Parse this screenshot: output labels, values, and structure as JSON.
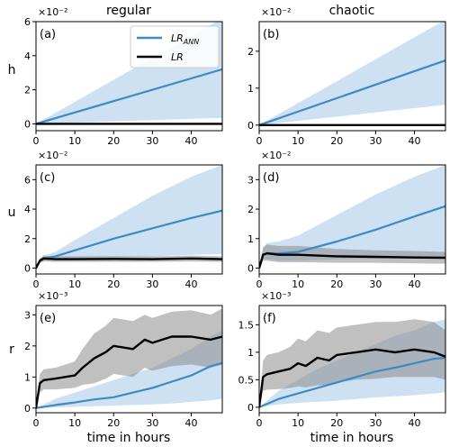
{
  "figure": {
    "column_titles": [
      "regular",
      "chaotic"
    ],
    "row_labels": [
      "h",
      "u",
      "r"
    ],
    "xlabel": "time in hours",
    "legend": [
      {
        "label": "LR",
        "subscript": "ANN",
        "color": "#3d8ac4"
      },
      {
        "label": "LR",
        "subscript": "",
        "color": "#000000"
      }
    ],
    "colors": {
      "ann": "#3d8ac4",
      "ann_band": "#bcd7ee",
      "lr": "#000000",
      "lr_band": "#8c8c8c"
    }
  },
  "chart_data": [
    {
      "type": "line",
      "panel": "(a)",
      "multiplier": "×10⁻²",
      "xlim": [
        0,
        48
      ],
      "ylim": [
        -0.4,
        6
      ],
      "xticks": [
        0,
        10,
        20,
        30,
        40
      ],
      "yticks": [
        0,
        2,
        4,
        6
      ],
      "series": [
        {
          "name": "LR_ANN",
          "x": [
            0,
            48
          ],
          "y": [
            0,
            3.2
          ],
          "lower": [
            0,
            0.35
          ],
          "upper": [
            0,
            6.2
          ]
        },
        {
          "name": "LR",
          "x": [
            0,
            48
          ],
          "y": [
            0,
            0
          ],
          "lower": [
            0,
            0
          ],
          "upper": [
            0,
            0
          ]
        }
      ]
    },
    {
      "type": "line",
      "panel": "(b)",
      "multiplier": "×10⁻²",
      "xlim": [
        0,
        48
      ],
      "ylim": [
        -0.15,
        2.8
      ],
      "xticks": [
        0,
        10,
        20,
        30,
        40
      ],
      "yticks": [
        0,
        1,
        2
      ],
      "series": [
        {
          "name": "LR_ANN",
          "x": [
            0,
            48
          ],
          "y": [
            0,
            1.75
          ],
          "lower": [
            0,
            0.55
          ],
          "upper": [
            0,
            2.85
          ]
        },
        {
          "name": "LR",
          "x": [
            0,
            48
          ],
          "y": [
            0,
            0
          ],
          "lower": [
            0,
            0
          ],
          "upper": [
            0,
            0
          ]
        }
      ]
    },
    {
      "type": "line",
      "panel": "(c)",
      "multiplier": "×10⁻²",
      "xlim": [
        0,
        48
      ],
      "ylim": [
        -0.4,
        7
      ],
      "xticks": [
        0,
        10,
        20,
        30,
        40
      ],
      "yticks": [
        0,
        2,
        4,
        6
      ],
      "series": [
        {
          "name": "LR_ANN",
          "x": [
            0,
            1,
            2,
            5,
            10,
            20,
            30,
            40,
            48
          ],
          "y": [
            0,
            0.5,
            0.65,
            0.8,
            1.2,
            2.0,
            2.7,
            3.4,
            3.9
          ],
          "lower": [
            0,
            0.4,
            0.5,
            0.55,
            0.6,
            0.7,
            0.8,
            0.9,
            0.95
          ],
          "upper": [
            0,
            0.7,
            0.85,
            1.1,
            1.9,
            3.4,
            4.9,
            6.2,
            7.0
          ]
        },
        {
          "name": "LR",
          "x": [
            0,
            1,
            2,
            5,
            10,
            20,
            30,
            40,
            48
          ],
          "y": [
            0,
            0.5,
            0.65,
            0.6,
            0.6,
            0.62,
            0.6,
            0.65,
            0.6
          ],
          "lower": [
            0,
            0.35,
            0.45,
            0.42,
            0.42,
            0.42,
            0.42,
            0.45,
            0.42
          ],
          "upper": [
            0,
            0.65,
            0.85,
            0.8,
            0.8,
            0.82,
            0.8,
            0.85,
            0.8
          ]
        }
      ]
    },
    {
      "type": "line",
      "panel": "(d)",
      "multiplier": "×10⁻²",
      "xlim": [
        0,
        48
      ],
      "ylim": [
        -0.2,
        3.5
      ],
      "xticks": [
        0,
        10,
        20,
        30,
        40
      ],
      "yticks": [
        0,
        1,
        2,
        3
      ],
      "series": [
        {
          "name": "LR_ANN",
          "x": [
            0,
            1,
            2,
            5,
            10,
            20,
            30,
            40,
            48
          ],
          "y": [
            0,
            0.45,
            0.5,
            0.5,
            0.55,
            0.9,
            1.3,
            1.75,
            2.1
          ],
          "lower": [
            0,
            0.3,
            0.3,
            0.25,
            0.25,
            0.3,
            0.32,
            0.33,
            0.35
          ],
          "upper": [
            0,
            0.7,
            0.85,
            0.9,
            1.1,
            1.8,
            2.5,
            3.1,
            3.5
          ]
        },
        {
          "name": "LR",
          "x": [
            0,
            1,
            2,
            5,
            10,
            20,
            30,
            40,
            48
          ],
          "y": [
            0,
            0.45,
            0.5,
            0.45,
            0.45,
            0.4,
            0.38,
            0.36,
            0.35
          ],
          "lower": [
            0,
            0.25,
            0.25,
            0.2,
            0.2,
            0.18,
            0.18,
            0.16,
            0.15
          ],
          "upper": [
            0,
            0.7,
            0.8,
            0.75,
            0.75,
            0.65,
            0.6,
            0.58,
            0.55
          ]
        }
      ]
    },
    {
      "type": "line",
      "panel": "(e)",
      "multiplier": "×10⁻³",
      "xlim": [
        0,
        48
      ],
      "ylim": [
        -0.15,
        3.3
      ],
      "xticks": [
        0,
        10,
        20,
        30,
        40
      ],
      "yticks": [
        0,
        1,
        2,
        3
      ],
      "series": [
        {
          "name": "LR_ANN",
          "x": [
            0,
            5,
            10,
            15,
            20,
            25,
            30,
            35,
            40,
            45,
            48
          ],
          "y": [
            0,
            0.1,
            0.18,
            0.28,
            0.35,
            0.5,
            0.65,
            0.85,
            1.05,
            1.35,
            1.45
          ],
          "lower": [
            0,
            0.02,
            0.04,
            0.06,
            0.08,
            0.1,
            0.12,
            0.15,
            0.2,
            0.25,
            0.3
          ],
          "upper": [
            0,
            0.3,
            0.5,
            0.7,
            0.9,
            1.1,
            1.3,
            1.6,
            1.9,
            2.3,
            2.5
          ]
        },
        {
          "name": "LR",
          "x": [
            0,
            1,
            2,
            5,
            10,
            12,
            15,
            18,
            20,
            25,
            28,
            30,
            35,
            40,
            45,
            48
          ],
          "y": [
            0,
            0.8,
            0.9,
            0.95,
            1.05,
            1.3,
            1.6,
            1.8,
            2.0,
            1.9,
            2.2,
            2.1,
            2.3,
            2.3,
            2.2,
            2.3
          ],
          "lower": [
            0,
            0.5,
            0.6,
            0.6,
            0.65,
            0.75,
            0.8,
            0.95,
            1.1,
            1.0,
            1.3,
            1.2,
            1.35,
            1.4,
            1.3,
            1.4
          ],
          "upper": [
            0,
            1.1,
            1.25,
            1.3,
            1.5,
            1.9,
            2.4,
            2.65,
            2.9,
            2.8,
            3.0,
            2.9,
            3.1,
            3.15,
            3.0,
            3.2
          ]
        }
      ]
    },
    {
      "type": "line",
      "panel": "(f)",
      "multiplier": "×10⁻³",
      "xlim": [
        0,
        48
      ],
      "ylim": [
        -0.1,
        1.85
      ],
      "xticks": [
        0,
        10,
        20,
        30,
        40
      ],
      "yticks": [
        0.0,
        0.5,
        1.0,
        1.5
      ],
      "series": [
        {
          "name": "LR_ANN",
          "x": [
            0,
            5,
            10,
            15,
            20,
            25,
            30,
            35,
            40,
            45,
            48
          ],
          "y": [
            0,
            0.15,
            0.25,
            0.35,
            0.45,
            0.55,
            0.65,
            0.72,
            0.8,
            0.88,
            0.9
          ],
          "lower": [
            0,
            0.05,
            0.08,
            0.1,
            0.12,
            0.15,
            0.18,
            0.2,
            0.22,
            0.25,
            0.27
          ],
          "upper": [
            0,
            0.3,
            0.5,
            0.7,
            0.85,
            1.0,
            1.15,
            1.3,
            1.4,
            1.55,
            1.6
          ]
        },
        {
          "name": "LR",
          "x": [
            0,
            1,
            2,
            5,
            8,
            10,
            12,
            15,
            18,
            20,
            25,
            30,
            35,
            40,
            45,
            48
          ],
          "y": [
            0,
            0.55,
            0.6,
            0.65,
            0.7,
            0.8,
            0.75,
            0.9,
            0.85,
            0.95,
            1.0,
            1.05,
            1.0,
            1.05,
            1.0,
            0.92
          ],
          "lower": [
            0,
            0.3,
            0.32,
            0.33,
            0.35,
            0.38,
            0.36,
            0.4,
            0.4,
            0.45,
            0.5,
            0.52,
            0.55,
            0.55,
            0.55,
            0.5
          ],
          "upper": [
            0,
            0.85,
            0.95,
            1.0,
            1.1,
            1.25,
            1.2,
            1.4,
            1.35,
            1.45,
            1.5,
            1.55,
            1.55,
            1.6,
            1.55,
            1.4
          ]
        }
      ]
    }
  ]
}
